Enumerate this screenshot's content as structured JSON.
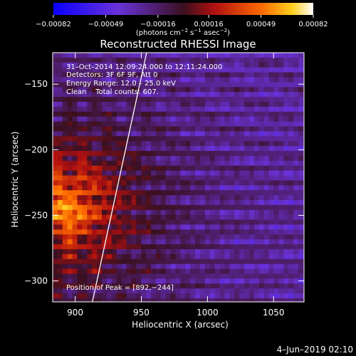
{
  "chart_data": {
    "type": "heatmap",
    "title": "Reconstructed RHESSI Image",
    "xlabel": "Heliocentric X (arcsec)",
    "ylabel": "Heliocentric Y (arcsec)",
    "xlim": [
      883,
      1073
    ],
    "ylim": [
      -316,
      -126
    ],
    "x_ticks": [
      900,
      950,
      1000,
      1050
    ],
    "x_tick_labels": [
      "900",
      "950",
      "1000",
      "1050"
    ],
    "y_ticks": [
      -150,
      -200,
      -250,
      -300
    ],
    "y_tick_labels": [
      "−150",
      "−200",
      "−250",
      "−300"
    ],
    "colorbar": {
      "min": -0.00082,
      "max": 0.00082,
      "ticks": [
        -0.00082,
        -0.00049,
        -0.00016,
        0.00016,
        0.00049,
        0.00082
      ],
      "tick_labels": [
        "−0.00082",
        "−0.00049",
        "−0.00016",
        "0.00016",
        "0.00049",
        "0.00082"
      ],
      "unit_main": "(photons cm",
      "unit_mid": " s",
      "unit_end": " asec",
      "unit_close": ")",
      "unit_sup1": "−2",
      "unit_sup2": "−1",
      "unit_sup3": "−2"
    },
    "annotations": [
      "31–Oct–2014 12:09:24.000 to 12:11:24.000",
      "Detectors: 3F 6F 9F, Att 0",
      "Energy Range: 12.0 – 25.0 keV",
      "Clean    Total counts: 607."
    ],
    "peak_label": "Position of Peak = [892,−244]",
    "peak": [
      892,
      -244
    ],
    "limb_line": [
      [
        954,
        -126
      ],
      [
        913,
        -316
      ]
    ],
    "grid": false,
    "legend": "none"
  },
  "footer_date": "4–Jun–2019 02:10"
}
